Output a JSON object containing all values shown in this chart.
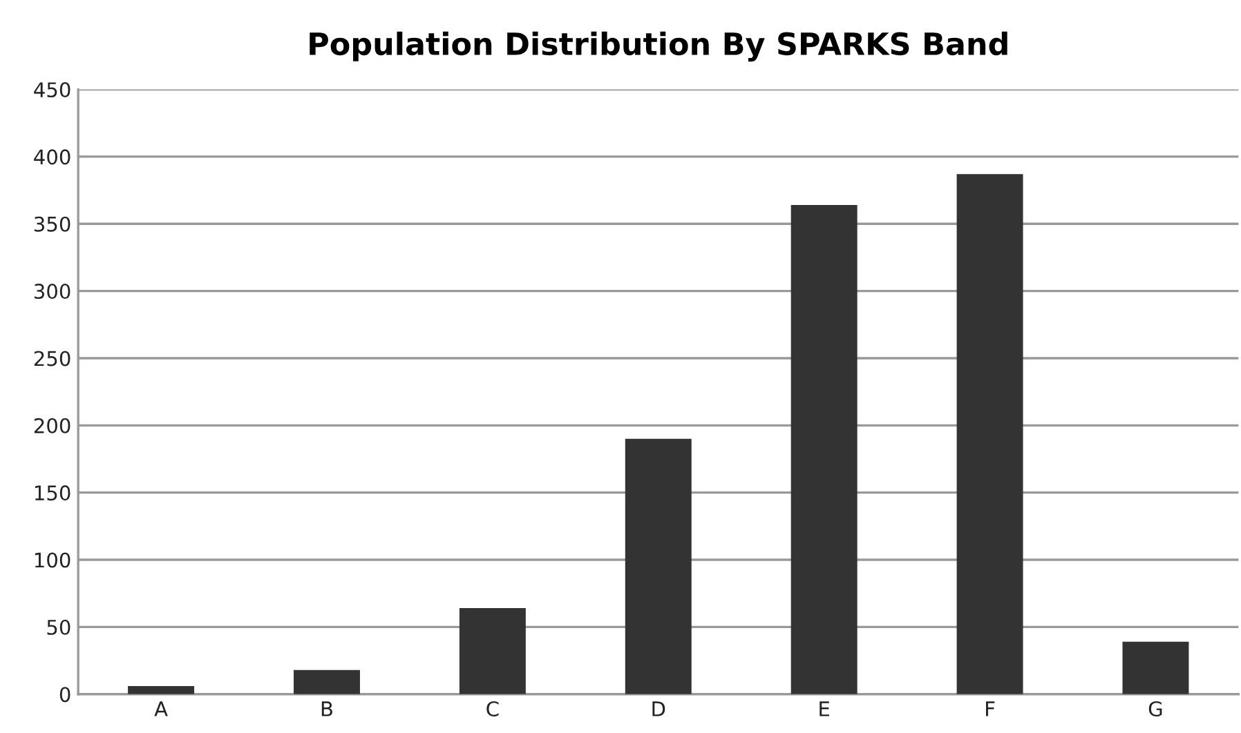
{
  "chart_data": {
    "type": "bar",
    "title": "Population Distribution By SPARKS Band",
    "categories": [
      "A",
      "B",
      "C",
      "D",
      "E",
      "F",
      "G"
    ],
    "values": [
      6,
      18,
      64,
      190,
      364,
      387,
      39
    ],
    "color": "#333333",
    "ylim": [
      0,
      450
    ],
    "yticks": [
      0,
      50,
      100,
      150,
      200,
      250,
      300,
      350,
      400,
      450
    ],
    "grid": "y"
  }
}
